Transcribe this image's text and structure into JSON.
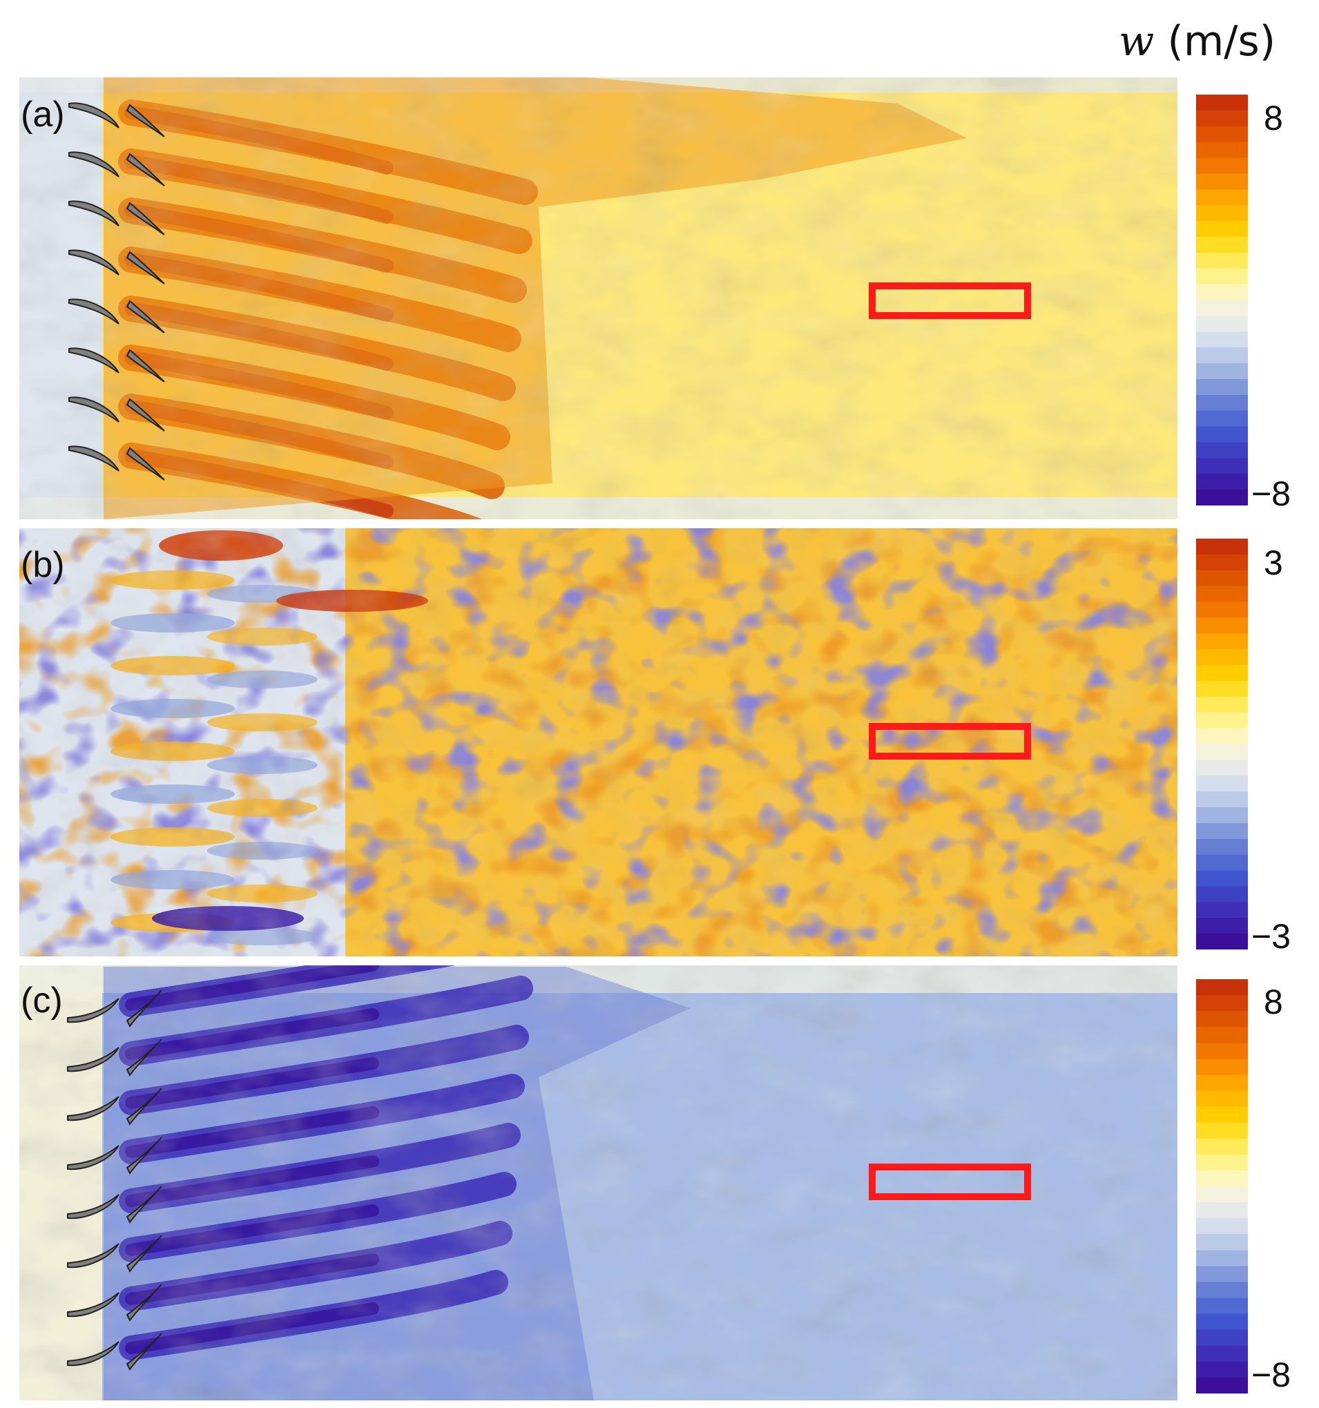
{
  "figure": {
    "colorbar_title": {
      "variable": "w",
      "unit": "(m/s)"
    },
    "colorscale": {
      "stops": [
        "#3b0f9a",
        "#3f2fb8",
        "#4058d0",
        "#6b84d6",
        "#a9bde3",
        "#dfe6ef",
        "#fbf6d6",
        "#fff070",
        "#ffd400",
        "#ffab00",
        "#f47a00",
        "#e05500",
        "#c8320a"
      ]
    },
    "highlight_color": "#ff1a1a",
    "blade_color": "#808080"
  },
  "chart_data": [
    {
      "type": "heatmap",
      "panel_label": "(a)",
      "field": "w",
      "colorbar": {
        "min": -8,
        "max": 8,
        "tick_labels": [
          "8",
          "−8"
        ]
      },
      "blades_visible": true,
      "blade_pattern": "pairs",
      "dominant": "positive"
    },
    {
      "type": "heatmap",
      "panel_label": "(b)",
      "field": "w",
      "colorbar": {
        "min": -3,
        "max": 3,
        "tick_labels": [
          "3",
          "−3"
        ]
      },
      "blades_visible": false,
      "dominant": "mixed"
    },
    {
      "type": "heatmap",
      "panel_label": "(c)",
      "field": "w",
      "colorbar": {
        "min": -8,
        "max": 8,
        "tick_labels": [
          "8",
          "−8"
        ]
      },
      "blades_visible": true,
      "blade_pattern": "pairs-mirrored",
      "dominant": "negative"
    }
  ]
}
